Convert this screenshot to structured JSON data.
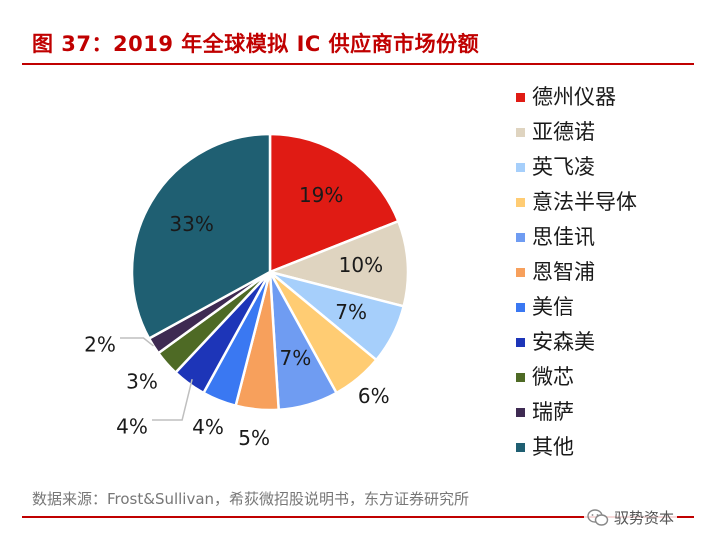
{
  "header": {
    "title": "图 37：2019 年全球模拟 IC 供应商市场份额"
  },
  "chart_data": {
    "type": "pie",
    "title": "图 37：2019 年全球模拟 IC 供应商市场份额",
    "slices": [
      {
        "name": "德州仪器",
        "value": 19,
        "label": "19%",
        "color": "#e01b14"
      },
      {
        "name": "亚德诺",
        "value": 10,
        "label": "10%",
        "color": "#dfd4c0"
      },
      {
        "name": "英飞凌",
        "value": 7,
        "label": "7%",
        "color": "#a6cffb"
      },
      {
        "name": "意法半导体",
        "value": 6,
        "label": "6%",
        "color": "#ffcc73"
      },
      {
        "name": "思佳讯",
        "value": 7,
        "label": "7%",
        "color": "#6f9cf2"
      },
      {
        "name": "恩智浦",
        "value": 5,
        "label": "5%",
        "color": "#f7a05c"
      },
      {
        "name": "美信",
        "value": 4,
        "label": "4%",
        "color": "#3a78f2"
      },
      {
        "name": "安森美",
        "value": 4,
        "label": "4%",
        "color": "#1d35b8"
      },
      {
        "name": "微芯",
        "value": 3,
        "label": "3%",
        "color": "#4e6a25"
      },
      {
        "name": "瑞萨",
        "value": 2,
        "label": "2%",
        "color": "#3e2a52"
      },
      {
        "name": "其他",
        "value": 33,
        "label": "33%",
        "color": "#1f5f72"
      }
    ],
    "legend_position": "right"
  },
  "footer": {
    "source": "数据来源：Frost&Sullivan，希荻微招股说明书，东方证券研究所",
    "watermark": "驭势资本"
  }
}
